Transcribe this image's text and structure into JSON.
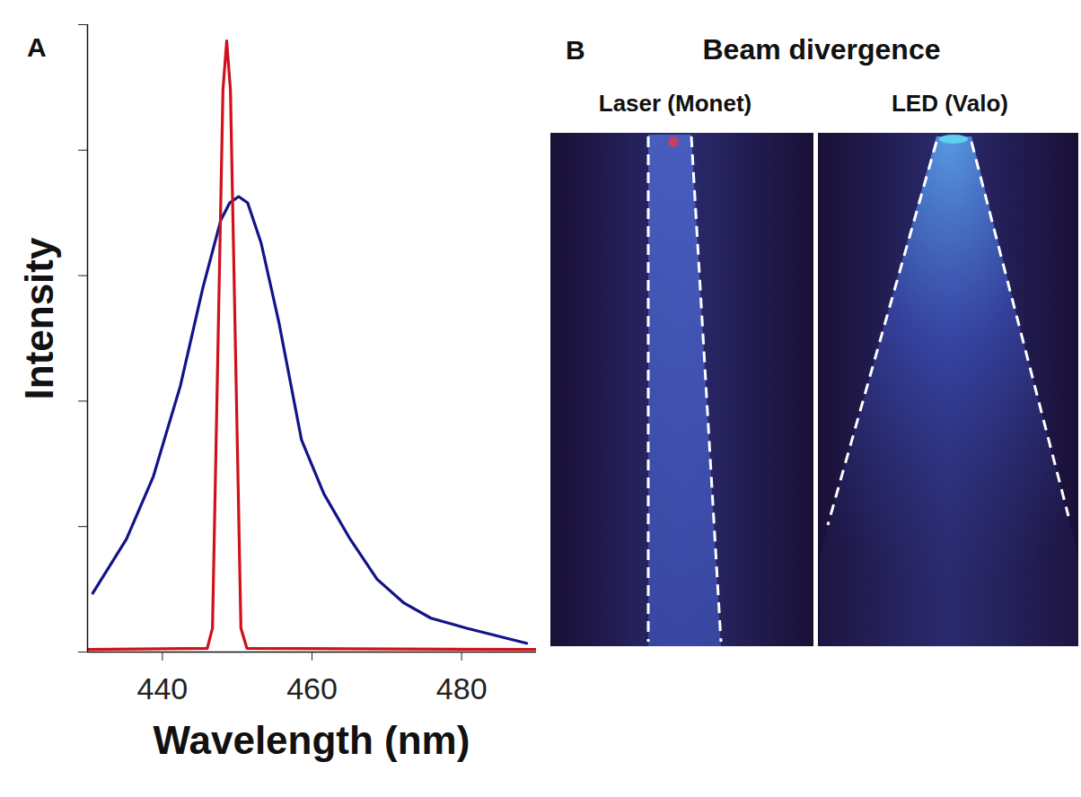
{
  "chart_data": {
    "type": "line",
    "label": "A",
    "x_label": "Wavelength (nm)",
    "y_label": "Intensity",
    "xlim": [
      430,
      490
    ],
    "xticks": [
      440,
      460,
      480
    ],
    "ylim": [
      0,
      5
    ],
    "yticks": [
      0,
      1,
      2,
      3,
      4,
      5
    ],
    "tick_labels": "x",
    "grid": false,
    "series": [
      {
        "color": "#13138a",
        "x": [
          430.7,
          435.2,
          438.8,
          442.4,
          445.4,
          447.8,
          449.0,
          450.2,
          451.4,
          453.2,
          455.6,
          458.6,
          461.6,
          465.1,
          468.7,
          472.3,
          475.9,
          480.7,
          488.7
        ],
        "values": [
          0.47,
          0.9,
          1.4,
          2.12,
          2.9,
          3.44,
          3.58,
          3.63,
          3.58,
          3.26,
          2.62,
          1.69,
          1.26,
          0.9,
          0.58,
          0.39,
          0.27,
          0.19,
          0.07
        ]
      },
      {
        "color": "#d0101a",
        "x": [
          430.0,
          446.0,
          446.7,
          447.4,
          448.1,
          448.6,
          449.1,
          449.8,
          450.5,
          451.3,
          490.0
        ],
        "values": [
          0.02,
          0.03,
          0.19,
          2.33,
          4.48,
          4.87,
          4.48,
          2.33,
          0.19,
          0.03,
          0.02
        ]
      }
    ]
  },
  "panel_b": {
    "label": "B",
    "title": "Beam divergence",
    "panels": [
      {
        "label": "Laser (Monet)"
      },
      {
        "label": "LED (Valo)"
      }
    ]
  }
}
